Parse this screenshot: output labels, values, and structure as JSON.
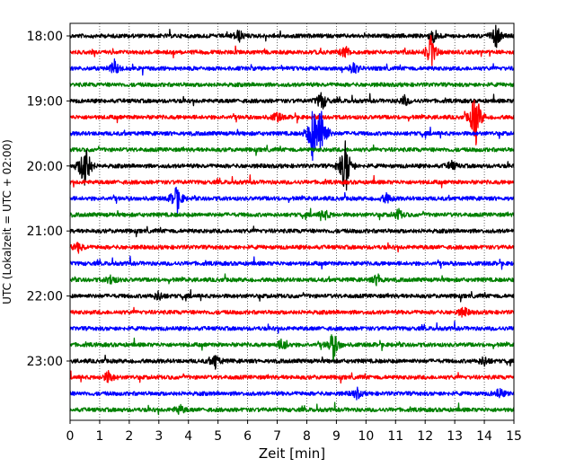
{
  "chart_data": {
    "type": "line",
    "title": "",
    "xlabel": "Zeit  [min]",
    "ylabel": "UTC (Lokalzeit = UTC + 02:00)",
    "xlim": [
      0,
      15
    ],
    "x_ticks": [
      "0",
      "1",
      "2",
      "3",
      "4",
      "5",
      "6",
      "7",
      "8",
      "9",
      "10",
      "11",
      "12",
      "13",
      "14",
      "15"
    ],
    "y_tick_labels": [
      "18:00",
      "19:00",
      "20:00",
      "21:00",
      "22:00",
      "23:00"
    ],
    "grid": "vertical dotted",
    "trace_colors": [
      "#000000",
      "#ff0000",
      "#0000ff",
      "#008000"
    ],
    "rows": [
      {
        "start": "18:00",
        "color": "#000000",
        "bursts": [
          {
            "x": 5.7,
            "amp": 0.5
          },
          {
            "x": 12.3,
            "amp": 0.6
          },
          {
            "x": 14.4,
            "amp": 0.9
          }
        ]
      },
      {
        "start": "18:15",
        "color": "#ff0000",
        "bursts": [
          {
            "x": 9.3,
            "amp": 0.5
          },
          {
            "x": 12.2,
            "amp": 1.3
          }
        ]
      },
      {
        "start": "18:30",
        "color": "#0000ff",
        "bursts": [
          {
            "x": 1.5,
            "amp": 0.6
          },
          {
            "x": 9.6,
            "amp": 0.5
          }
        ]
      },
      {
        "start": "18:45",
        "color": "#008000",
        "bursts": []
      },
      {
        "start": "19:00",
        "color": "#000000",
        "bursts": [
          {
            "x": 8.5,
            "amp": 0.8
          },
          {
            "x": 11.3,
            "amp": 0.4
          }
        ]
      },
      {
        "start": "19:15",
        "color": "#ff0000",
        "bursts": [
          {
            "x": 13.7,
            "amp": 2.5
          },
          {
            "x": 7.0,
            "amp": 0.4
          }
        ]
      },
      {
        "start": "19:30",
        "color": "#0000ff",
        "bursts": [
          {
            "x": 8.2,
            "amp": 2.2
          },
          {
            "x": 8.5,
            "amp": 2.5
          }
        ]
      },
      {
        "start": "19:45",
        "color": "#008000",
        "bursts": []
      },
      {
        "start": "20:00",
        "color": "#000000",
        "bursts": [
          {
            "x": 0.5,
            "amp": 2.6
          },
          {
            "x": 9.3,
            "amp": 2.6
          },
          {
            "x": 12.9,
            "amp": 0.4
          }
        ]
      },
      {
        "start": "20:15",
        "color": "#ff0000",
        "bursts": []
      },
      {
        "start": "20:30",
        "color": "#0000ff",
        "bursts": [
          {
            "x": 3.6,
            "amp": 1.2
          },
          {
            "x": 10.7,
            "amp": 0.4
          }
        ]
      },
      {
        "start": "20:45",
        "color": "#008000",
        "bursts": [
          {
            "x": 8.6,
            "amp": 0.4
          },
          {
            "x": 11.1,
            "amp": 0.4
          }
        ]
      },
      {
        "start": "21:00",
        "color": "#000000",
        "bursts": []
      },
      {
        "start": "21:15",
        "color": "#ff0000",
        "bursts": [
          {
            "x": 0.3,
            "amp": 0.4
          }
        ]
      },
      {
        "start": "21:30",
        "color": "#0000ff",
        "bursts": []
      },
      {
        "start": "21:45",
        "color": "#008000",
        "bursts": [
          {
            "x": 1.4,
            "amp": 0.4
          },
          {
            "x": 10.4,
            "amp": 0.5
          }
        ]
      },
      {
        "start": "22:00",
        "color": "#000000",
        "bursts": [
          {
            "x": 3.0,
            "amp": 0.4
          }
        ]
      },
      {
        "start": "22:15",
        "color": "#ff0000",
        "bursts": [
          {
            "x": 13.3,
            "amp": 0.4
          }
        ]
      },
      {
        "start": "22:30",
        "color": "#0000ff",
        "bursts": []
      },
      {
        "start": "22:45",
        "color": "#008000",
        "bursts": [
          {
            "x": 7.2,
            "amp": 0.6
          },
          {
            "x": 8.9,
            "amp": 1.2
          }
        ]
      },
      {
        "start": "23:00",
        "color": "#000000",
        "bursts": [
          {
            "x": 4.9,
            "amp": 0.6
          },
          {
            "x": 14.0,
            "amp": 0.4
          }
        ]
      },
      {
        "start": "23:15",
        "color": "#ff0000",
        "bursts": [
          {
            "x": 1.3,
            "amp": 0.5
          }
        ]
      },
      {
        "start": "23:30",
        "color": "#0000ff",
        "bursts": [
          {
            "x": 9.7,
            "amp": 0.4
          },
          {
            "x": 14.5,
            "amp": 0.4
          }
        ]
      },
      {
        "start": "23:45",
        "color": "#008000",
        "bursts": [
          {
            "x": 3.7,
            "amp": 0.4
          }
        ]
      }
    ]
  }
}
